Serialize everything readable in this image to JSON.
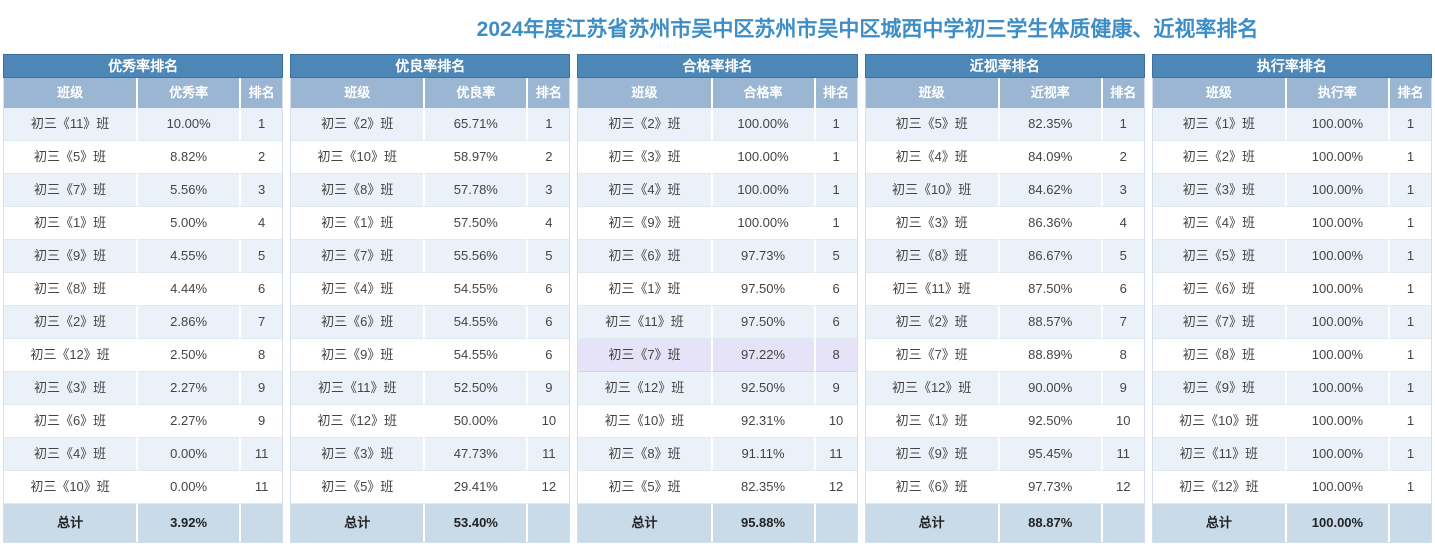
{
  "page_title": "2024年度江苏省苏州市吴中区苏州市吴中区城西中学初三学生体质健康、近视率排名",
  "colors": {
    "title_text": "#3d8ec6",
    "table_title_bg": "#4d87b7",
    "column_header_bg": "#9bb6d2",
    "row_alt_bg": "#eaf1f8",
    "total_row_bg": "#c9dae9",
    "highlight_row_bg": "#e6e2f7"
  },
  "tables": [
    {
      "title": "优秀率排名",
      "columns": [
        "班级",
        "优秀率",
        "排名"
      ],
      "highlight_row": -1,
      "rows": [
        [
          "初三《11》班",
          "10.00%",
          "1"
        ],
        [
          "初三《5》班",
          "8.82%",
          "2"
        ],
        [
          "初三《7》班",
          "5.56%",
          "3"
        ],
        [
          "初三《1》班",
          "5.00%",
          "4"
        ],
        [
          "初三《9》班",
          "4.55%",
          "5"
        ],
        [
          "初三《8》班",
          "4.44%",
          "6"
        ],
        [
          "初三《2》班",
          "2.86%",
          "7"
        ],
        [
          "初三《12》班",
          "2.50%",
          "8"
        ],
        [
          "初三《3》班",
          "2.27%",
          "9"
        ],
        [
          "初三《6》班",
          "2.27%",
          "9"
        ],
        [
          "初三《4》班",
          "0.00%",
          "11"
        ],
        [
          "初三《10》班",
          "0.00%",
          "11"
        ]
      ],
      "total": {
        "label": "总计",
        "value": "3.92%"
      }
    },
    {
      "title": "优良率排名",
      "columns": [
        "班级",
        "优良率",
        "排名"
      ],
      "highlight_row": -1,
      "rows": [
        [
          "初三《2》班",
          "65.71%",
          "1"
        ],
        [
          "初三《10》班",
          "58.97%",
          "2"
        ],
        [
          "初三《8》班",
          "57.78%",
          "3"
        ],
        [
          "初三《1》班",
          "57.50%",
          "4"
        ],
        [
          "初三《7》班",
          "55.56%",
          "5"
        ],
        [
          "初三《4》班",
          "54.55%",
          "6"
        ],
        [
          "初三《6》班",
          "54.55%",
          "6"
        ],
        [
          "初三《9》班",
          "54.55%",
          "6"
        ],
        [
          "初三《11》班",
          "52.50%",
          "9"
        ],
        [
          "初三《12》班",
          "50.00%",
          "10"
        ],
        [
          "初三《3》班",
          "47.73%",
          "11"
        ],
        [
          "初三《5》班",
          "29.41%",
          "12"
        ]
      ],
      "total": {
        "label": "总计",
        "value": "53.40%"
      }
    },
    {
      "title": "合格率排名",
      "columns": [
        "班级",
        "合格率",
        "排名"
      ],
      "highlight_row": 7,
      "rows": [
        [
          "初三《2》班",
          "100.00%",
          "1"
        ],
        [
          "初三《3》班",
          "100.00%",
          "1"
        ],
        [
          "初三《4》班",
          "100.00%",
          "1"
        ],
        [
          "初三《9》班",
          "100.00%",
          "1"
        ],
        [
          "初三《6》班",
          "97.73%",
          "5"
        ],
        [
          "初三《1》班",
          "97.50%",
          "6"
        ],
        [
          "初三《11》班",
          "97.50%",
          "6"
        ],
        [
          "初三《7》班",
          "97.22%",
          "8"
        ],
        [
          "初三《12》班",
          "92.50%",
          "9"
        ],
        [
          "初三《10》班",
          "92.31%",
          "10"
        ],
        [
          "初三《8》班",
          "91.11%",
          "11"
        ],
        [
          "初三《5》班",
          "82.35%",
          "12"
        ]
      ],
      "total": {
        "label": "总计",
        "value": "95.88%"
      }
    },
    {
      "title": "近视率排名",
      "columns": [
        "班级",
        "近视率",
        "排名"
      ],
      "highlight_row": -1,
      "rows": [
        [
          "初三《5》班",
          "82.35%",
          "1"
        ],
        [
          "初三《4》班",
          "84.09%",
          "2"
        ],
        [
          "初三《10》班",
          "84.62%",
          "3"
        ],
        [
          "初三《3》班",
          "86.36%",
          "4"
        ],
        [
          "初三《8》班",
          "86.67%",
          "5"
        ],
        [
          "初三《11》班",
          "87.50%",
          "6"
        ],
        [
          "初三《2》班",
          "88.57%",
          "7"
        ],
        [
          "初三《7》班",
          "88.89%",
          "8"
        ],
        [
          "初三《12》班",
          "90.00%",
          "9"
        ],
        [
          "初三《1》班",
          "92.50%",
          "10"
        ],
        [
          "初三《9》班",
          "95.45%",
          "11"
        ],
        [
          "初三《6》班",
          "97.73%",
          "12"
        ]
      ],
      "total": {
        "label": "总计",
        "value": "88.87%"
      }
    },
    {
      "title": "执行率排名",
      "columns": [
        "班级",
        "执行率",
        "排名"
      ],
      "highlight_row": -1,
      "rows": [
        [
          "初三《1》班",
          "100.00%",
          "1"
        ],
        [
          "初三《2》班",
          "100.00%",
          "1"
        ],
        [
          "初三《3》班",
          "100.00%",
          "1"
        ],
        [
          "初三《4》班",
          "100.00%",
          "1"
        ],
        [
          "初三《5》班",
          "100.00%",
          "1"
        ],
        [
          "初三《6》班",
          "100.00%",
          "1"
        ],
        [
          "初三《7》班",
          "100.00%",
          "1"
        ],
        [
          "初三《8》班",
          "100.00%",
          "1"
        ],
        [
          "初三《9》班",
          "100.00%",
          "1"
        ],
        [
          "初三《10》班",
          "100.00%",
          "1"
        ],
        [
          "初三《11》班",
          "100.00%",
          "1"
        ],
        [
          "初三《12》班",
          "100.00%",
          "1"
        ]
      ],
      "total": {
        "label": "总计",
        "value": "100.00%"
      }
    }
  ]
}
